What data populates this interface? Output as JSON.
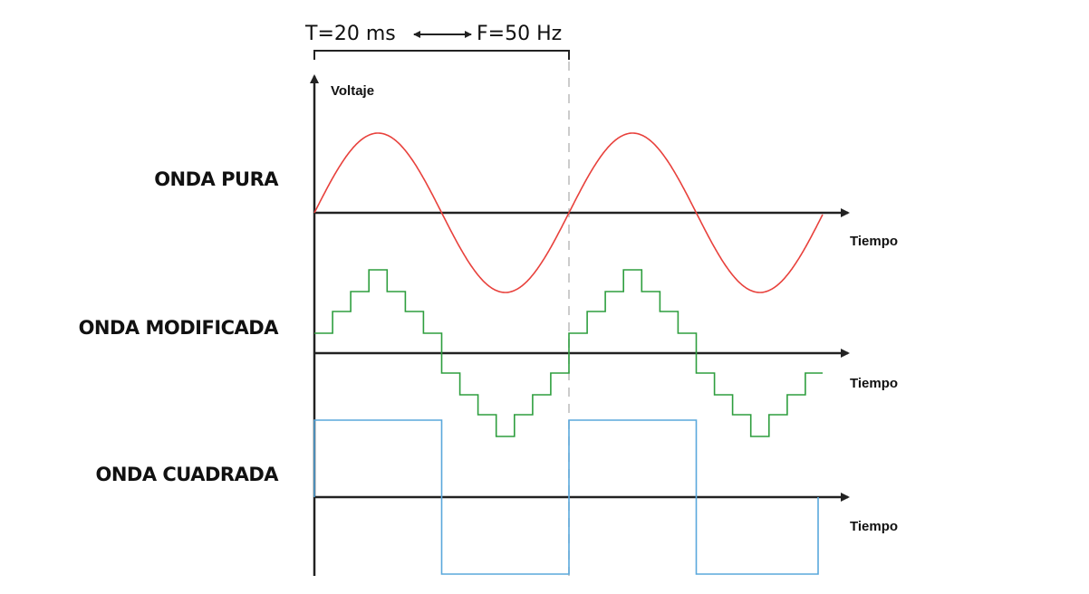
{
  "diagram": {
    "period_label": "T=20 ms",
    "frequency_label": "F=50 Hz",
    "y_axis_label": "Voltaje",
    "time_label": "Tiempo",
    "waves": [
      {
        "label": "ONDA PURA",
        "kind": "sine",
        "color": "#e8413c",
        "cycles": 2
      },
      {
        "label": "ONDA MODIFICADA",
        "kind": "stepped",
        "color": "#2e9e3e",
        "cycles": 2
      },
      {
        "label": "ONDA CUADRADA",
        "kind": "square",
        "color": "#5aa8dc",
        "cycles": 2
      }
    ],
    "colors": {
      "axis": "#222222",
      "guide": "#bbbbbb",
      "text": "#111111"
    }
  }
}
